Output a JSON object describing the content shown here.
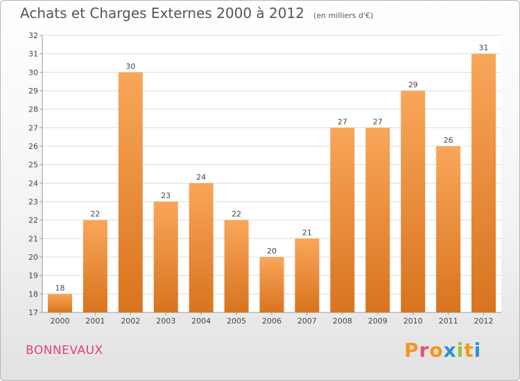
{
  "header": {
    "title": "Achats et Charges Externes 2000 à 2012",
    "unit": "(en milliers d'€)"
  },
  "footer": {
    "town": "BONNEVAUX",
    "brand": "Proxiti",
    "brand_colors": [
      "#f7941d",
      "#e94e77",
      "#f7941d",
      "#2a8fd8",
      "#8cc63f",
      "#f7941d",
      "#2a8fd8"
    ]
  },
  "colors": {
    "bar_top": "#f9a65a",
    "bar_bottom": "#d8741e",
    "grid": "#dcdcdc",
    "town": "#e0407a"
  },
  "chart_data": {
    "type": "bar",
    "title": "Achats et Charges Externes 2000 à 2012",
    "subtitle": "(en milliers d'€)",
    "xlabel": "",
    "ylabel": "",
    "categories": [
      "2000",
      "2001",
      "2002",
      "2003",
      "2004",
      "2005",
      "2006",
      "2007",
      "2008",
      "2009",
      "2010",
      "2011",
      "2012"
    ],
    "values": [
      18,
      22,
      30,
      23,
      24,
      22,
      20,
      21,
      27,
      27,
      29,
      26,
      31
    ],
    "ylim": [
      17,
      32
    ],
    "yticks": [
      17,
      18,
      19,
      20,
      21,
      22,
      23,
      24,
      25,
      26,
      27,
      28,
      29,
      30,
      31,
      32
    ],
    "grid": true,
    "data_labels": true
  }
}
